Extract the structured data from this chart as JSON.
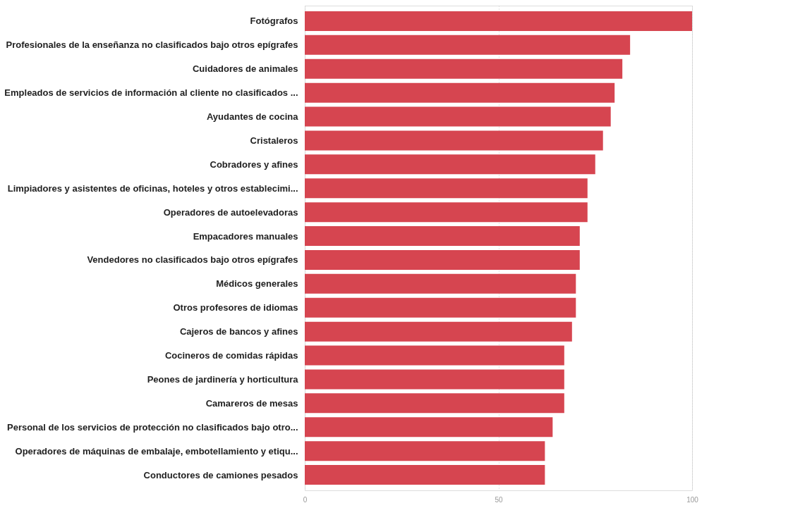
{
  "chart_data": {
    "type": "bar",
    "orientation": "horizontal",
    "categories": [
      "Fotógrafos",
      "Profesionales de la enseñanza no clasificados bajo otros epígrafes",
      "Cuidadores de animales",
      "Empleados de servicios de información al cliente no clasificados ...",
      "Ayudantes de cocina",
      "Cristaleros",
      "Cobradores y afines",
      "Limpiadores y asistentes de oficinas, hoteles y otros establecimi...",
      "Operadores de autoelevadoras",
      "Empacadores manuales",
      "Vendedores no clasificados bajo otros epígrafes",
      "Médicos generales",
      "Otros profesores de idiomas",
      "Cajeros de bancos y afines",
      "Cocineros de comidas rápidas",
      "Peones de jardinería y horticultura",
      "Camareros de mesas",
      "Personal de los servicios de protección no clasificados bajo otro...",
      "Operadores de máquinas de embalaje, embotellamiento y etiqu...",
      "Conductores de camiones pesados"
    ],
    "values": [
      100,
      84,
      82,
      80,
      79,
      77,
      75,
      73,
      73,
      71,
      71,
      70,
      70,
      69,
      67,
      67,
      67,
      64,
      62,
      62
    ],
    "color": "#d64550",
    "xlim": [
      0,
      100
    ],
    "xticks": [
      0,
      50,
      100
    ],
    "grid": "x"
  }
}
